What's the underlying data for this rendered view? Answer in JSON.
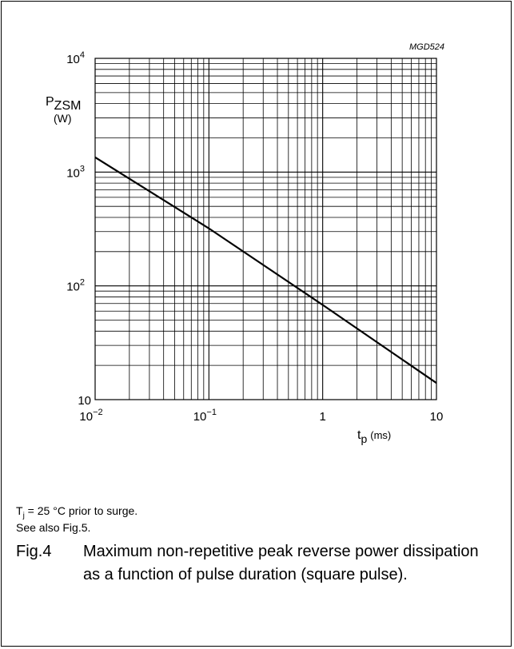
{
  "figure": {
    "code": "MGD524",
    "conditions_line1_prefix": "T",
    "conditions_line1_subscript": "j",
    "conditions_line1_suffix": " = 25 °C prior to surge.",
    "conditions_line2": "See also Fig.5.",
    "number": "Fig.4",
    "caption": "Maximum non-repetitive peak reverse power dissipation as a function of pulse duration (square pulse)."
  },
  "chart_data": {
    "type": "line",
    "x_scale": "log",
    "y_scale": "log",
    "xlim": [
      0.01,
      10
    ],
    "ylim": [
      10,
      10000
    ],
    "grid": true,
    "ylabel_main": "P",
    "ylabel_sub": "ZSM",
    "ylabel_unit": "(W)",
    "xlabel_main": "t",
    "xlabel_sub": "p",
    "xlabel_unit": "(ms)",
    "x_ticks": [
      {
        "base": "10",
        "exp": "−2",
        "value": 0.01
      },
      {
        "base": "10",
        "exp": "−1",
        "value": 0.1
      },
      {
        "base": "1",
        "exp": "",
        "value": 1
      },
      {
        "base": "10",
        "exp": "",
        "value": 10
      }
    ],
    "y_ticks": [
      {
        "base": "10",
        "exp": "",
        "value": 10
      },
      {
        "base": "10",
        "exp": "2",
        "value": 100
      },
      {
        "base": "10",
        "exp": "3",
        "value": 1000
      },
      {
        "base": "10",
        "exp": "4",
        "value": 10000
      }
    ],
    "series": [
      {
        "x": [
          0.01,
          0.1,
          1,
          10
        ],
        "y": [
          1350,
          320,
          68,
          14
        ]
      }
    ]
  }
}
